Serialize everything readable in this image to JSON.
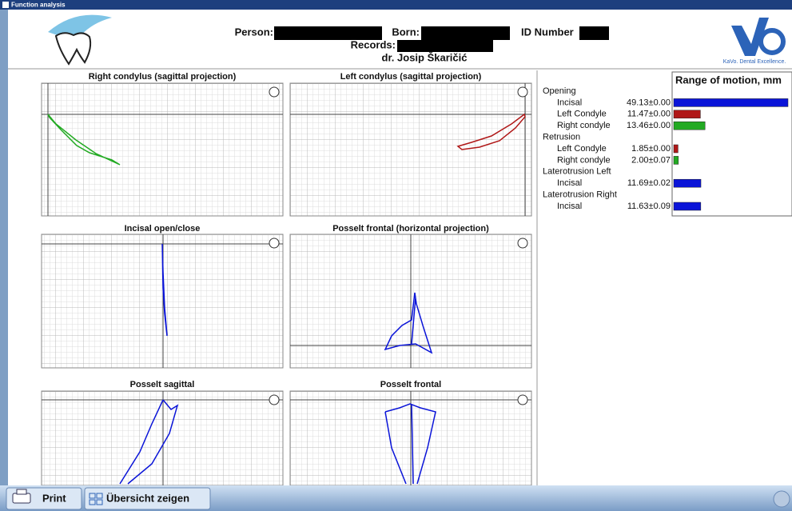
{
  "window": {
    "title": "Function analysis"
  },
  "header": {
    "person_label": "Person:",
    "born_label": "Born:",
    "id_label": "ID Number",
    "records_label": "Records:",
    "doctor": "dr. Josip Škaričić",
    "brand": "KaVo. Dental Excellence."
  },
  "plots": [
    {
      "title": "Right condylus (sagittal projection)"
    },
    {
      "title": "Left condylus (sagittal projection)"
    },
    {
      "title": "Incisal open/close"
    },
    {
      "title": "Posselt frontal (horizontal projection)"
    },
    {
      "title": "Posselt sagittal"
    },
    {
      "title": "Posselt frontal"
    }
  ],
  "range_of_motion": {
    "title": "Range of motion, mm",
    "groups": [
      {
        "name": "Opening",
        "items": [
          {
            "label": "Incisal",
            "value": 49.13,
            "error": 0,
            "value_label": "49.13±0.00",
            "color": "#0a14d8"
          },
          {
            "label": "Left Condyle",
            "value": 11.47,
            "error": 0,
            "value_label": "11.47±0.00",
            "color": "#b01818"
          },
          {
            "label": "Right condyle",
            "value": 13.46,
            "error": 0,
            "value_label": "13.46±0.00",
            "color": "#22aa22"
          }
        ]
      },
      {
        "name": "Retrusion",
        "items": [
          {
            "label": "Left Condyle",
            "value": 1.85,
            "error": 0,
            "value_label": "1.85±0.00",
            "color": "#b01818"
          },
          {
            "label": "Right condyle",
            "value": 2.0,
            "error": 0.07,
            "value_label": "2.00±0.07",
            "color": "#22aa22"
          }
        ]
      },
      {
        "name": "Laterotrusion Left",
        "items": [
          {
            "label": "Incisal",
            "value": 11.69,
            "error": 0.02,
            "value_label": "11.69±0.02",
            "color": "#0a14d8"
          }
        ]
      },
      {
        "name": "Laterotrusion Right",
        "items": [
          {
            "label": "Incisal",
            "value": 11.63,
            "error": 0.09,
            "value_label": "11.63±0.09",
            "color": "#0a14d8"
          }
        ]
      }
    ]
  },
  "toolbar": {
    "print": "Print",
    "overview": "Übersicht zeigen"
  }
}
